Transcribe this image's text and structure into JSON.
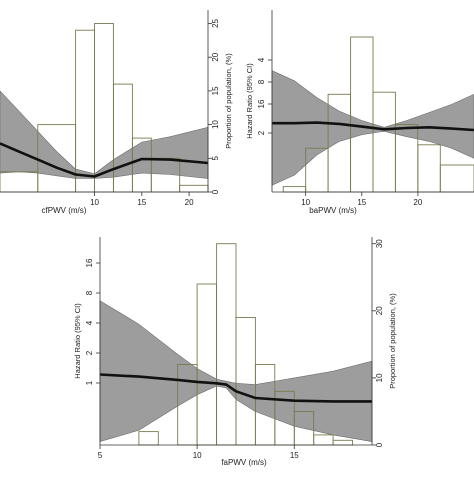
{
  "chart_data": [
    {
      "type": "bar",
      "panel": "cfPWV",
      "xlabel": "cfPWV (m/s)",
      "ylabel_right": "Proportion of population, (%)",
      "xlim": [
        0,
        22
      ],
      "ylim_right": [
        0,
        27
      ],
      "x_ticks": [
        10,
        15,
        20
      ],
      "y_ticks_right": [
        0,
        5,
        10,
        15,
        20,
        25
      ],
      "hist": {
        "bin_edges": [
          0,
          4,
          8,
          10,
          12,
          14,
          16,
          19,
          22
        ],
        "values": [
          3,
          10,
          24,
          25,
          16,
          8,
          5,
          1
        ]
      },
      "hazard_curve": {
        "x": [
          0,
          2,
          4,
          6,
          8,
          10,
          12,
          15,
          18,
          22
        ],
        "y": [
          7.2,
          6.0,
          4.8,
          3.6,
          2.6,
          2.3,
          3.4,
          4.9,
          4.8,
          4.3
        ],
        "lower": [
          2.8,
          3.0,
          2.8,
          2.4,
          2.0,
          2.0,
          2.2,
          2.8,
          2.6,
          2.0
        ],
        "upper": [
          15.0,
          12.0,
          9.0,
          6.0,
          3.4,
          2.7,
          4.8,
          7.4,
          8.2,
          9.6
        ]
      }
    },
    {
      "type": "bar",
      "panel": "baPWV",
      "xlabel": "baPWV (m/s)",
      "ylabel": "Hazard Ratio (95% CI)",
      "xlim": [
        7,
        25
      ],
      "ylim": [
        0,
        27
      ],
      "x_ticks": [
        10,
        15,
        20
      ],
      "y_ticks": [
        2,
        4,
        8,
        16
      ],
      "hist": {
        "bin_edges": [
          8,
          10,
          12,
          14,
          16,
          18,
          20,
          22,
          25
        ],
        "values": [
          0.8,
          6.5,
          14.5,
          23.0,
          14.8,
          10.0,
          7.0,
          4.0
        ]
      },
      "hazard_curve": {
        "x": [
          7,
          9,
          11,
          13,
          15,
          17,
          19,
          21,
          23,
          25
        ],
        "y": [
          10.2,
          10.2,
          10.3,
          10.1,
          9.7,
          9.3,
          9.5,
          9.6,
          9.4,
          9.2
        ],
        "lower": [
          1.0,
          2.5,
          5.5,
          7.5,
          8.5,
          9.0,
          8.2,
          7.5,
          6.5,
          5.0
        ],
        "upper": [
          18.0,
          16.5,
          14.0,
          12.0,
          10.6,
          9.6,
          10.6,
          11.8,
          13.0,
          14.5
        ]
      }
    },
    {
      "type": "bar",
      "panel": "faPWV",
      "xlabel": "faPWV (m/s)",
      "ylabel": "Hazard Ratio (95% CI)",
      "ylabel_right": "Proportion of population, (%)",
      "xlim": [
        5,
        19
      ],
      "ylim_right": [
        0,
        31
      ],
      "x_ticks": [
        5,
        10,
        15
      ],
      "y_ticks_left": [
        "1",
        "2",
        "4",
        "8",
        "16"
      ],
      "y_ticks_right": [
        0,
        10,
        20,
        30
      ],
      "hist": {
        "bin_edges": [
          7,
          8,
          9,
          10,
          11,
          12,
          13,
          14,
          15,
          16,
          17,
          18
        ],
        "values": [
          2,
          0,
          12,
          24,
          30,
          19,
          12,
          8,
          5,
          1.5,
          0.7
        ]
      },
      "hazard_curve": {
        "x": [
          5,
          7,
          9,
          10,
          11,
          11.5,
          12,
          13,
          15,
          17,
          19
        ],
        "y": [
          10.5,
          10.2,
          9.7,
          9.4,
          9.2,
          9.0,
          8.0,
          7.0,
          6.6,
          6.5,
          6.5
        ],
        "lower": [
          0.5,
          2.2,
          5.8,
          7.5,
          8.8,
          8.5,
          6.8,
          5.0,
          2.8,
          1.5,
          0.5
        ],
        "upper": [
          21.5,
          18.0,
          13.5,
          11.4,
          9.8,
          9.5,
          9.2,
          9.0,
          10.0,
          11.0,
          12.5
        ]
      }
    }
  ]
}
